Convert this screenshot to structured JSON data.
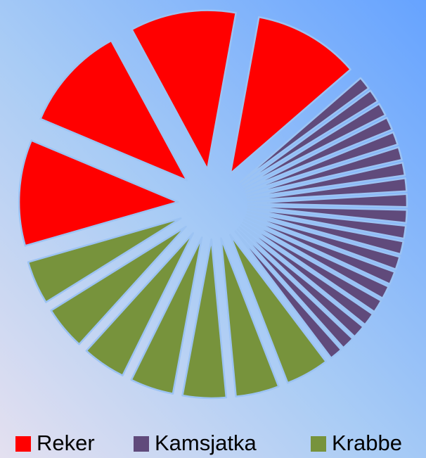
{
  "chart_data": {
    "type": "pie",
    "series": [
      {
        "name": "Reker",
        "color": "#ff0000",
        "values": [
          10.75,
          10.75,
          10.75,
          10.75
        ]
      },
      {
        "name": "Kamsjatka",
        "color": "#604a7b",
        "values": [
          1.3,
          1.3,
          1.3,
          1.3,
          1.3,
          1.3,
          1.3,
          1.3,
          1.3,
          1.3,
          1.3,
          1.3,
          1.3,
          1.3,
          1.3,
          1.3,
          1.3,
          1.3,
          1.3,
          1.3
        ]
      },
      {
        "name": "Krabbe",
        "color": "#77933c",
        "values": [
          4.4,
          4.4,
          4.4,
          4.4,
          4.4,
          4.4,
          4.4
        ]
      }
    ],
    "legend": "bottom"
  }
}
